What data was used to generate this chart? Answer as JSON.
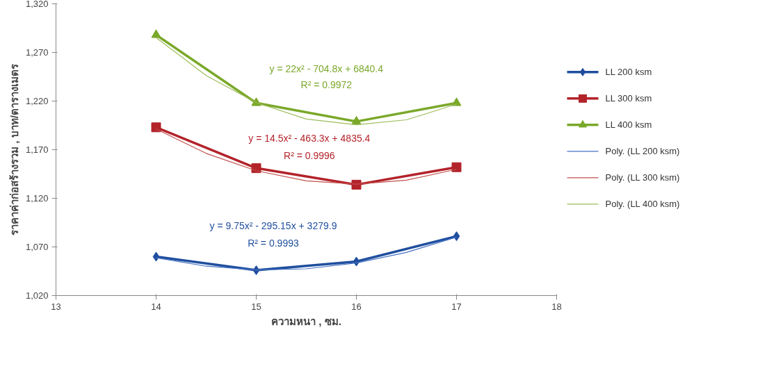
{
  "chart_data": {
    "type": "line",
    "xlabel": "ความหนา , ซม.",
    "ylabel": "ราคาค่าก่อสร้างรวม , บาท/ตารางเมตร",
    "xlim": [
      13,
      18
    ],
    "xticks": [
      13,
      14,
      15,
      16,
      17,
      18
    ],
    "ylim": [
      1020,
      1320
    ],
    "yticks": [
      {
        "value": 1020,
        "label": "1,020"
      },
      {
        "value": 1070,
        "label": "1,070"
      },
      {
        "value": 1120,
        "label": "1,120"
      },
      {
        "value": 1170,
        "label": "1,170"
      },
      {
        "value": 1220,
        "label": "1,220"
      },
      {
        "value": 1270,
        "label": "1,270"
      },
      {
        "value": 1320,
        "label": "1,320"
      }
    ],
    "grid": false,
    "legend": "right",
    "series": [
      {
        "name": "LL 200 ksm",
        "color": "#1f4e9e",
        "marker": "diamond",
        "x": [
          14,
          15,
          16,
          17
        ],
        "values": [
          1060,
          1046,
          1055,
          1081
        ]
      },
      {
        "name": "LL 300 ksm",
        "color": "#b3232a",
        "marker": "square",
        "x": [
          14,
          15,
          16,
          17
        ],
        "values": [
          1193,
          1151,
          1134,
          1152
        ]
      },
      {
        "name": "LL 400 ksm",
        "color": "#7aa82a",
        "marker": "triangle",
        "x": [
          14,
          15,
          16,
          17
        ],
        "values": [
          1288,
          1218,
          1199,
          1218
        ]
      },
      {
        "name": "Poly. (LL 200 ksm)",
        "color": "#4472c4",
        "marker": "none",
        "x": [
          14,
          14.5,
          15,
          15.5,
          16,
          16.5,
          17
        ],
        "values": [
          1058.8,
          1050.2,
          1046.4,
          1047.5,
          1053.5,
          1064.4,
          1080.1
        ]
      },
      {
        "name": "Poly. (LL 300 ksm)",
        "color": "#c0504d",
        "marker": "none",
        "x": [
          14,
          14.5,
          15,
          15.5,
          16,
          16.5,
          17
        ],
        "values": [
          1191.2,
          1166.2,
          1148.4,
          1137.9,
          1134.6,
          1138.6,
          1149.8
        ]
      },
      {
        "name": "Poly. (LL 400 ksm)",
        "color": "#9bbb59",
        "marker": "none",
        "x": [
          14,
          14.5,
          15,
          15.5,
          16,
          16.5,
          17
        ],
        "values": [
          1285.2,
          1246.3,
          1218.4,
          1201.5,
          1195.6,
          1200.7,
          1216.8
        ]
      }
    ],
    "annotations": [
      "y = 9.75x² - 295.15x + 3279.9",
      "R² = 0.9993",
      "y = 14.5x² - 463.3x + 4835.4",
      "R² = 0.9996",
      "y = 22x² - 704.8x + 6840.4",
      "R² = 0.9972"
    ]
  }
}
